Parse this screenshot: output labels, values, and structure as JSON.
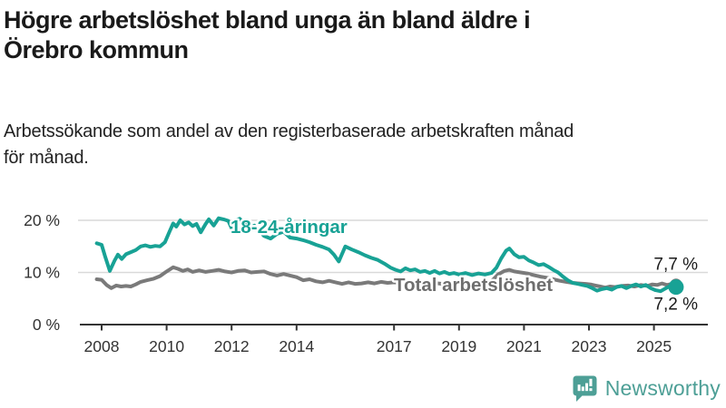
{
  "header": {
    "title": "Högre arbetslöshet bland unga än bland äldre i\nÖrebro kommun",
    "subtitle": "Arbetssökande som andel av den registerbaserade arbetskraften månad\nför månad."
  },
  "footer": {
    "brand": "Newsworthy"
  },
  "colors": {
    "youth_line": "#18A295",
    "total_line": "#7A7A7A",
    "total_label": "#6E6E6E",
    "axis": "#333333",
    "grid": "#D9D9D9",
    "text": "#1A1A1A",
    "brand": "#4D9F96"
  },
  "chart_data": {
    "type": "line",
    "title": "Högre arbetslöshet bland unga än bland äldre i Örebro kommun",
    "subtitle": "Arbetssökande som andel av den registerbaserade arbetskraften månad för månad.",
    "unit": "%",
    "grid": "horizontal",
    "legend": "inline-labels",
    "x_axis": {
      "ticks": [
        2008,
        2010,
        2012,
        2014,
        2017,
        2019,
        2021,
        2023,
        2025
      ]
    },
    "y_axis": {
      "ylim": [
        0,
        22
      ],
      "ticks": [
        {
          "value": 0,
          "label": "0 %"
        },
        {
          "value": 10,
          "label": "10 %"
        },
        {
          "value": 20,
          "label": "20 %"
        }
      ]
    },
    "series": [
      {
        "name": "Total arbetslöshet",
        "color": "#7A7A7A",
        "label_color": "#6E6E6E",
        "end_label": "7,7 %",
        "end_label_position": "above",
        "last_value": 7.7,
        "dot_radius": 6.5,
        "points": [
          [
            2007.85,
            8.7
          ],
          [
            2008.0,
            8.6
          ],
          [
            2008.15,
            7.6
          ],
          [
            2008.3,
            7.0
          ],
          [
            2008.45,
            7.5
          ],
          [
            2008.6,
            7.3
          ],
          [
            2008.75,
            7.4
          ],
          [
            2008.9,
            7.3
          ],
          [
            2009.05,
            7.7
          ],
          [
            2009.2,
            8.2
          ],
          [
            2009.4,
            8.5
          ],
          [
            2009.6,
            8.8
          ],
          [
            2009.8,
            9.3
          ],
          [
            2010.0,
            10.2
          ],
          [
            2010.2,
            11.0
          ],
          [
            2010.35,
            10.7
          ],
          [
            2010.5,
            10.3
          ],
          [
            2010.65,
            10.6
          ],
          [
            2010.8,
            10.1
          ],
          [
            2011.0,
            10.4
          ],
          [
            2011.2,
            10.1
          ],
          [
            2011.4,
            10.3
          ],
          [
            2011.6,
            10.5
          ],
          [
            2011.8,
            10.2
          ],
          [
            2012.0,
            10.0
          ],
          [
            2012.2,
            10.3
          ],
          [
            2012.4,
            10.4
          ],
          [
            2012.6,
            10.0
          ],
          [
            2012.8,
            10.1
          ],
          [
            2013.0,
            10.2
          ],
          [
            2013.2,
            9.7
          ],
          [
            2013.4,
            9.4
          ],
          [
            2013.6,
            9.7
          ],
          [
            2013.8,
            9.4
          ],
          [
            2014.0,
            9.1
          ],
          [
            2014.2,
            8.5
          ],
          [
            2014.4,
            8.7
          ],
          [
            2014.6,
            8.3
          ],
          [
            2014.8,
            8.1
          ],
          [
            2015.0,
            8.4
          ],
          [
            2015.2,
            8.1
          ],
          [
            2015.4,
            7.8
          ],
          [
            2015.6,
            8.1
          ],
          [
            2015.8,
            7.8
          ],
          [
            2016.0,
            7.9
          ],
          [
            2016.2,
            8.1
          ],
          [
            2016.4,
            7.9
          ],
          [
            2016.6,
            8.2
          ],
          [
            2016.8,
            8.0
          ],
          [
            2017.0,
            8.1
          ],
          [
            2017.3,
            7.9
          ],
          [
            2017.6,
            8.1
          ],
          [
            2017.9,
            7.9
          ],
          [
            2018.2,
            8.0
          ],
          [
            2018.5,
            7.8
          ],
          [
            2018.8,
            7.9
          ],
          [
            2019.1,
            7.8
          ],
          [
            2019.4,
            8.0
          ],
          [
            2019.7,
            7.9
          ],
          [
            2020.0,
            8.3
          ],
          [
            2020.2,
            9.6
          ],
          [
            2020.4,
            10.3
          ],
          [
            2020.55,
            10.5
          ],
          [
            2020.7,
            10.2
          ],
          [
            2020.9,
            10.0
          ],
          [
            2021.1,
            9.8
          ],
          [
            2021.3,
            9.5
          ],
          [
            2021.5,
            9.2
          ],
          [
            2021.7,
            9.0
          ],
          [
            2021.9,
            8.7
          ],
          [
            2022.1,
            8.4
          ],
          [
            2022.3,
            8.2
          ],
          [
            2022.5,
            8.0
          ],
          [
            2022.7,
            7.9
          ],
          [
            2022.9,
            7.8
          ],
          [
            2023.05,
            7.7
          ],
          [
            2023.2,
            7.5
          ],
          [
            2023.35,
            7.3
          ],
          [
            2023.5,
            7.1
          ],
          [
            2023.65,
            7.3
          ],
          [
            2023.8,
            7.2
          ],
          [
            2024.0,
            7.4
          ],
          [
            2024.2,
            7.5
          ],
          [
            2024.4,
            7.3
          ],
          [
            2024.6,
            7.6
          ],
          [
            2024.8,
            7.4
          ],
          [
            2024.95,
            7.7
          ],
          [
            2025.1,
            7.6
          ],
          [
            2025.25,
            7.9
          ],
          [
            2025.4,
            7.6
          ],
          [
            2025.55,
            7.8
          ],
          [
            2025.68,
            7.7
          ]
        ]
      },
      {
        "name": "18-24-åringar",
        "color": "#18A295",
        "label_color": "#18A295",
        "end_label": "7,2 %",
        "end_label_position": "below",
        "last_value": 7.2,
        "dot_radius": 8.5,
        "points": [
          [
            2007.85,
            15.6
          ],
          [
            2008.0,
            15.3
          ],
          [
            2008.1,
            13.2
          ],
          [
            2008.25,
            10.3
          ],
          [
            2008.4,
            12.3
          ],
          [
            2008.5,
            13.4
          ],
          [
            2008.62,
            12.6
          ],
          [
            2008.75,
            13.5
          ],
          [
            2008.9,
            13.9
          ],
          [
            2009.05,
            14.3
          ],
          [
            2009.2,
            15.0
          ],
          [
            2009.35,
            15.2
          ],
          [
            2009.5,
            14.9
          ],
          [
            2009.65,
            15.1
          ],
          [
            2009.8,
            15.0
          ],
          [
            2009.95,
            15.8
          ],
          [
            2010.1,
            18.0
          ],
          [
            2010.2,
            19.4
          ],
          [
            2010.3,
            18.8
          ],
          [
            2010.42,
            20.0
          ],
          [
            2010.55,
            19.2
          ],
          [
            2010.68,
            19.6
          ],
          [
            2010.8,
            18.9
          ],
          [
            2010.92,
            19.3
          ],
          [
            2011.05,
            17.7
          ],
          [
            2011.2,
            19.3
          ],
          [
            2011.3,
            20.2
          ],
          [
            2011.45,
            19.0
          ],
          [
            2011.6,
            20.4
          ],
          [
            2011.75,
            20.2
          ],
          [
            2011.9,
            19.9
          ],
          [
            2012.0,
            18.5
          ],
          [
            2012.12,
            20.0
          ],
          [
            2012.25,
            20.3
          ],
          [
            2012.4,
            19.3
          ],
          [
            2012.55,
            18.4
          ],
          [
            2012.7,
            19.0
          ],
          [
            2012.85,
            18.0
          ],
          [
            2013.0,
            17.0
          ],
          [
            2013.2,
            16.5
          ],
          [
            2013.4,
            17.4
          ],
          [
            2013.6,
            17.8
          ],
          [
            2013.8,
            16.7
          ],
          [
            2014.0,
            16.5
          ],
          [
            2014.2,
            16.2
          ],
          [
            2014.4,
            15.8
          ],
          [
            2014.6,
            15.3
          ],
          [
            2014.8,
            14.9
          ],
          [
            2015.0,
            14.4
          ],
          [
            2015.15,
            13.4
          ],
          [
            2015.3,
            12.1
          ],
          [
            2015.5,
            15.0
          ],
          [
            2015.7,
            14.4
          ],
          [
            2015.9,
            13.9
          ],
          [
            2016.1,
            13.3
          ],
          [
            2016.3,
            12.8
          ],
          [
            2016.5,
            12.4
          ],
          [
            2016.7,
            11.7
          ],
          [
            2016.9,
            10.9
          ],
          [
            2017.05,
            10.5
          ],
          [
            2017.2,
            10.2
          ],
          [
            2017.35,
            10.8
          ],
          [
            2017.5,
            10.4
          ],
          [
            2017.65,
            10.6
          ],
          [
            2017.8,
            10.1
          ],
          [
            2017.95,
            10.3
          ],
          [
            2018.1,
            9.9
          ],
          [
            2018.25,
            10.3
          ],
          [
            2018.4,
            9.8
          ],
          [
            2018.55,
            10.1
          ],
          [
            2018.7,
            9.7
          ],
          [
            2018.85,
            9.9
          ],
          [
            2019.0,
            9.6
          ],
          [
            2019.2,
            9.9
          ],
          [
            2019.4,
            9.5
          ],
          [
            2019.6,
            9.8
          ],
          [
            2019.8,
            9.6
          ],
          [
            2020.0,
            9.9
          ],
          [
            2020.15,
            10.9
          ],
          [
            2020.3,
            12.7
          ],
          [
            2020.45,
            14.2
          ],
          [
            2020.55,
            14.6
          ],
          [
            2020.7,
            13.5
          ],
          [
            2020.85,
            12.9
          ],
          [
            2021.0,
            13.0
          ],
          [
            2021.15,
            12.3
          ],
          [
            2021.3,
            11.9
          ],
          [
            2021.45,
            11.4
          ],
          [
            2021.6,
            11.6
          ],
          [
            2021.75,
            11.1
          ],
          [
            2021.9,
            10.5
          ],
          [
            2022.05,
            10.0
          ],
          [
            2022.2,
            9.2
          ],
          [
            2022.35,
            8.5
          ],
          [
            2022.5,
            8.0
          ],
          [
            2022.65,
            7.8
          ],
          [
            2022.8,
            7.6
          ],
          [
            2022.95,
            7.4
          ],
          [
            2023.1,
            7.0
          ],
          [
            2023.25,
            6.5
          ],
          [
            2023.4,
            6.8
          ],
          [
            2023.55,
            7.0
          ],
          [
            2023.7,
            6.7
          ],
          [
            2023.85,
            7.2
          ],
          [
            2024.0,
            7.4
          ],
          [
            2024.15,
            7.0
          ],
          [
            2024.3,
            7.4
          ],
          [
            2024.45,
            7.7
          ],
          [
            2024.6,
            7.3
          ],
          [
            2024.75,
            7.6
          ],
          [
            2024.9,
            7.0
          ],
          [
            2025.05,
            6.6
          ],
          [
            2025.2,
            6.4
          ],
          [
            2025.35,
            6.9
          ],
          [
            2025.5,
            7.4
          ],
          [
            2025.68,
            7.2
          ]
        ]
      }
    ]
  }
}
